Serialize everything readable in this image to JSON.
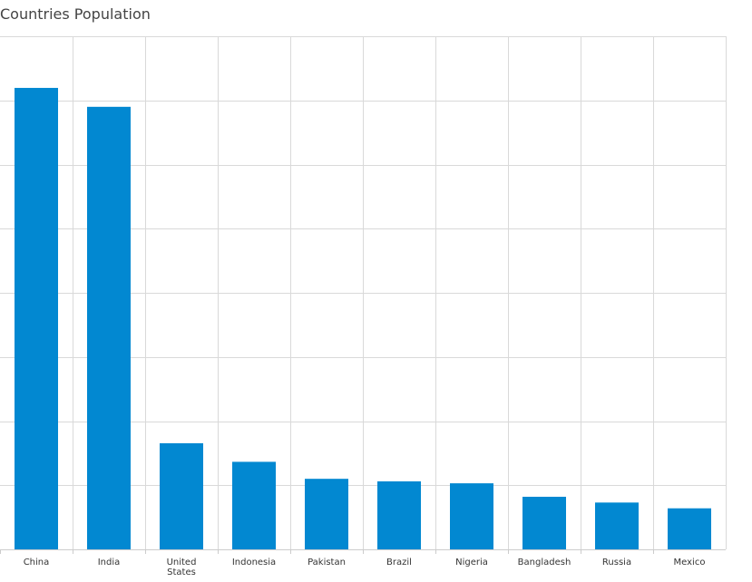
{
  "chart_data": {
    "type": "bar",
    "title": "Countries Population",
    "xlabel": "",
    "ylabel": "",
    "categories": [
      "China",
      "India",
      "United States",
      "Indonesia",
      "Pakistan",
      "Brazil",
      "Nigeria",
      "Bangladesh",
      "Russia",
      "Mexico"
    ],
    "values": [
      1439,
      1380,
      331,
      273,
      220,
      212,
      206,
      164,
      146,
      128
    ],
    "ylim": [
      0,
      1600
    ],
    "grid": true,
    "bar_color": "#0288d1",
    "grid_color": "#d9d9d9"
  }
}
